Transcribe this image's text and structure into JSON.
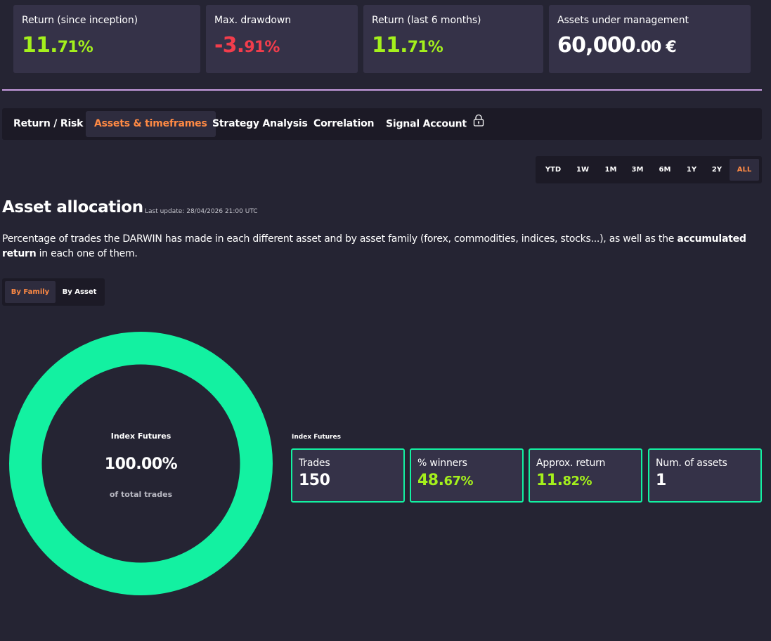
{
  "stats": [
    {
      "label": "Return (since inception)",
      "value_main": "11.",
      "value_small": "71%",
      "tone": "pos"
    },
    {
      "label": "Max. drawdown",
      "value_main": "-3.",
      "value_small": "91%",
      "tone": "neg"
    },
    {
      "label": "Return (last 6 months)",
      "value_main": "11.",
      "value_small": "71%",
      "tone": "pos"
    },
    {
      "label": "Assets under management",
      "value_main": "60,000",
      "value_small": ".00 €",
      "tone": "wht"
    }
  ],
  "tabs": [
    {
      "label": "Return / Risk",
      "active": false
    },
    {
      "label": "Assets & timeframes",
      "active": true
    },
    {
      "label": "Strategy Analysis",
      "active": false
    },
    {
      "label": "Correlation",
      "active": false
    },
    {
      "label": "Signal Account",
      "active": false,
      "icon": "lock-icon"
    }
  ],
  "timeframes": [
    "YTD",
    "1W",
    "1M",
    "3M",
    "6M",
    "1Y",
    "2Y",
    "ALL"
  ],
  "timeframe_selected": "ALL",
  "section": {
    "title": "Asset allocation",
    "last_update": "Last update: 28/04/2026 21:00 UTC",
    "description_before": "Percentage of trades the DARWIN has made in each different asset and by asset family (forex, commodities, indices, stocks...), as well as the ",
    "description_bold": "accumulated return",
    "description_after": " in each one of them."
  },
  "toggle": {
    "by_family": "By Family",
    "by_asset": "By Asset",
    "selected": "By Family"
  },
  "chart_data": {
    "type": "pie",
    "categories": [
      "Index Futures"
    ],
    "values": [
      100.0
    ],
    "colors": [
      "#13f1a1"
    ],
    "center_label": "Index Futures",
    "center_value": "100.00%",
    "center_sub": "of total trades"
  },
  "family_detail": {
    "name": "Index Futures",
    "metrics": [
      {
        "label": "Trades",
        "value_main": "150",
        "value_small": "",
        "tone": "wht"
      },
      {
        "label": "% winners",
        "value_main": "48.",
        "value_small": "67%",
        "tone": "pos"
      },
      {
        "label": "Approx. return",
        "value_main": "11.",
        "value_small": "82%",
        "tone": "pos"
      },
      {
        "label": "Num. of assets",
        "value_main": "1",
        "value_small": "",
        "tone": "wht"
      }
    ]
  },
  "colors": {
    "background": "#252433",
    "card": "#353248",
    "positive": "#a4f01c",
    "negative": "#f23d4c",
    "accent": "#ff8a44",
    "donut": "#13f1a1",
    "divider": "#c99ee2"
  }
}
